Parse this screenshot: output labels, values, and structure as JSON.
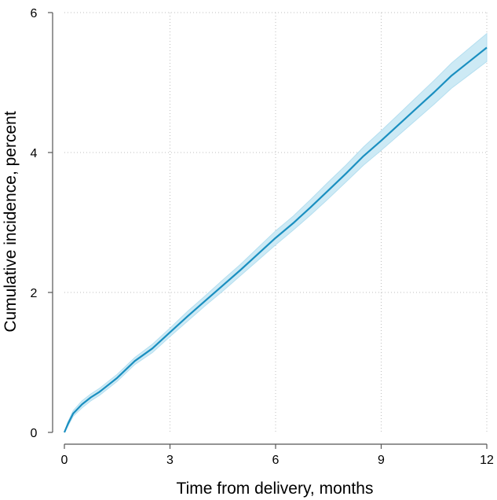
{
  "chart_data": {
    "type": "line",
    "title": "",
    "xlabel": "Time from delivery, months",
    "ylabel": "Cumulative incidence, percent",
    "xlim": [
      0,
      12
    ],
    "ylim": [
      0,
      6
    ],
    "x_ticks": [
      0,
      3,
      6,
      9,
      12
    ],
    "y_ticks": [
      0,
      2,
      4,
      6
    ],
    "grid": true,
    "legend": "none",
    "colors": {
      "line": "#1a8fc0",
      "band": "#cdeaf5",
      "band_edge": "#b5dff0",
      "grid": "#bdbdbd",
      "axis": "#555555"
    },
    "series": [
      {
        "name": "Cumulative incidence",
        "x": [
          0,
          0.1,
          0.25,
          0.5,
          0.75,
          1,
          1.5,
          2,
          2.5,
          3,
          3.5,
          4,
          4.5,
          5,
          5.5,
          6,
          6.5,
          7,
          7.5,
          8,
          8.5,
          9,
          9.5,
          10,
          10.5,
          11,
          11.5,
          12
        ],
        "y": [
          0,
          0.12,
          0.27,
          0.4,
          0.5,
          0.58,
          0.78,
          1.02,
          1.2,
          1.43,
          1.66,
          1.88,
          2.1,
          2.32,
          2.55,
          2.78,
          2.99,
          3.22,
          3.46,
          3.7,
          3.95,
          4.17,
          4.4,
          4.63,
          4.86,
          5.1,
          5.3,
          5.5
        ],
        "lower": [
          0,
          0.09,
          0.23,
          0.35,
          0.45,
          0.53,
          0.73,
          0.97,
          1.14,
          1.37,
          1.59,
          1.81,
          2.02,
          2.24,
          2.46,
          2.68,
          2.89,
          3.11,
          3.34,
          3.58,
          3.82,
          4.03,
          4.25,
          4.47,
          4.69,
          4.92,
          5.11,
          5.3
        ],
        "upper": [
          0,
          0.15,
          0.31,
          0.45,
          0.55,
          0.63,
          0.83,
          1.07,
          1.26,
          1.49,
          1.73,
          1.95,
          2.18,
          2.4,
          2.64,
          2.88,
          3.09,
          3.33,
          3.58,
          3.82,
          4.08,
          4.31,
          4.55,
          4.79,
          5.03,
          5.28,
          5.49,
          5.7
        ]
      }
    ]
  }
}
